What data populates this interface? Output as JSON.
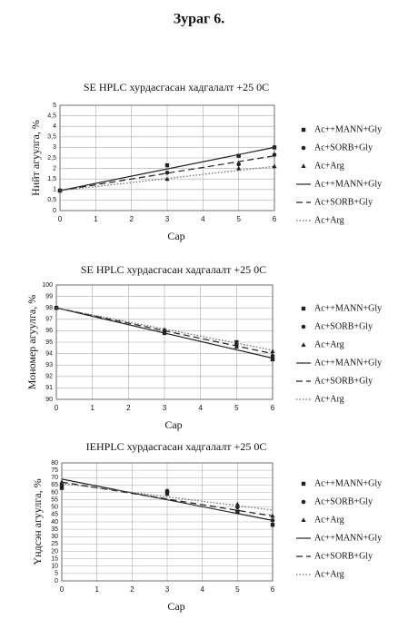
{
  "title": "Зураг 6.",
  "chart_data": [
    {
      "type": "scatter",
      "title": "SE HPLC хурдасгасан хадгалалт +25 0C",
      "xlabel": "Сар",
      "ylabel": "Нийт агуулга, %",
      "xlim": [
        0,
        6
      ],
      "xticks": [
        0,
        1,
        2,
        3,
        4,
        5,
        6
      ],
      "ylim": [
        0,
        5
      ],
      "yticks": [
        0,
        {
          "value": 0.5,
          "label": "0,5"
        },
        1,
        {
          "value": 1.5,
          "label": "1,5"
        },
        2,
        {
          "value": 2.5,
          "label": "2,5"
        },
        3,
        {
          "value": 3.5,
          "label": "3,5"
        },
        4,
        {
          "value": 4.5,
          "label": "4,5"
        },
        5
      ],
      "grid": true,
      "series": [
        {
          "name": "Ac++MANN+Gly",
          "style": "square",
          "color": "#222222",
          "x": [
            0,
            3,
            5,
            6
          ],
          "values": [
            0.95,
            2.15,
            2.6,
            3.0
          ]
        },
        {
          "name": "Ac+SORB+Gly",
          "style": "circle",
          "color": "#222222",
          "x": [
            0,
            3,
            5,
            6
          ],
          "values": [
            0.95,
            1.8,
            2.2,
            2.65
          ]
        },
        {
          "name": "Ac+Arg",
          "style": "triangle",
          "color": "#222222",
          "x": [
            0,
            3,
            5,
            6
          ],
          "values": [
            0.95,
            1.5,
            2.0,
            2.1
          ]
        },
        {
          "name": "Ac++MANN+Gly",
          "style": "solid",
          "color": "#222222",
          "x": [
            0,
            6
          ],
          "values": [
            0.95,
            3.0
          ]
        },
        {
          "name": "Ac+SORB+Gly",
          "style": "dashed",
          "color": "#222222",
          "x": [
            0,
            6
          ],
          "values": [
            0.95,
            2.6
          ]
        },
        {
          "name": "Ac+Arg",
          "style": "dotted",
          "color": "#666666",
          "x": [
            0,
            6
          ],
          "values": [
            0.95,
            2.1
          ]
        }
      ]
    },
    {
      "type": "scatter",
      "title": "SE HPLC хурдасгасан хадгалалт +25 0C",
      "xlabel": "Сар",
      "ylabel": "Мономер агуулга, %",
      "xlim": [
        0,
        6
      ],
      "xticks": [
        0,
        1,
        2,
        3,
        4,
        5,
        6
      ],
      "ylim": [
        90,
        100
      ],
      "yticks": [
        90,
        91,
        92,
        93,
        94,
        95,
        96,
        97,
        98,
        99,
        100
      ],
      "grid": true,
      "series": [
        {
          "name": "Ac++MANN+Gly",
          "style": "square",
          "color": "#222222",
          "x": [
            0,
            3,
            5,
            6
          ],
          "values": [
            98,
            95.8,
            95,
            93.5
          ]
        },
        {
          "name": "Ac+SORB+Gly",
          "style": "circle",
          "color": "#222222",
          "x": [
            0,
            3,
            5,
            6
          ],
          "values": [
            98,
            96,
            94.8,
            93.8
          ]
        },
        {
          "name": "Ac+Arg",
          "style": "triangle",
          "color": "#222222",
          "x": [
            0,
            3,
            5,
            6
          ],
          "values": [
            98,
            96.1,
            94.6,
            94.2
          ]
        },
        {
          "name": "Ac++MANN+Gly",
          "style": "solid",
          "color": "#222222",
          "x": [
            0,
            6
          ],
          "values": [
            98,
            93.6
          ]
        },
        {
          "name": "Ac+SORB+Gly",
          "style": "dashed",
          "color": "#222222",
          "x": [
            0,
            6
          ],
          "values": [
            98,
            94
          ]
        },
        {
          "name": "Ac+Arg",
          "style": "dotted",
          "color": "#666666",
          "x": [
            0,
            6
          ],
          "values": [
            98,
            94.3
          ]
        }
      ]
    },
    {
      "type": "scatter",
      "title": "IEHPLC хурдасгасан хадгалалт +25 0C",
      "xlabel": "Сар",
      "ylabel": "Үндсэн агуулга, %",
      "xlim": [
        0,
        6
      ],
      "xticks": [
        0,
        1,
        2,
        3,
        4,
        5,
        6
      ],
      "ylim": [
        0,
        80
      ],
      "yticks": [
        0,
        5,
        10,
        15,
        20,
        25,
        30,
        35,
        40,
        45,
        50,
        55,
        60,
        65,
        70,
        75,
        80
      ],
      "grid": true,
      "series": [
        {
          "name": "Ac++MANN+Gly",
          "style": "square",
          "color": "#222222",
          "x": [
            0,
            3,
            5,
            6
          ],
          "values": [
            63,
            60,
            47,
            38
          ]
        },
        {
          "name": "Ac+SORB+Gly",
          "style": "circle",
          "color": "#222222",
          "x": [
            0,
            3,
            5,
            6
          ],
          "values": [
            65,
            61,
            50,
            41
          ]
        },
        {
          "name": "Ac+Arg",
          "style": "triangle",
          "color": "#222222",
          "x": [
            0,
            3,
            5,
            6
          ],
          "values": [
            67,
            59,
            52,
            44
          ]
        },
        {
          "name": "Ac++MANN+Gly",
          "style": "solid",
          "color": "#222222",
          "x": [
            0,
            6
          ],
          "values": [
            69,
            41
          ]
        },
        {
          "name": "Ac+SORB+Gly",
          "style": "dashed",
          "color": "#222222",
          "x": [
            0,
            6
          ],
          "values": [
            67,
            44
          ]
        },
        {
          "name": "Ac+Arg",
          "style": "dotted",
          "color": "#666666",
          "x": [
            0,
            6
          ],
          "values": [
            66,
            48
          ]
        }
      ]
    }
  ]
}
